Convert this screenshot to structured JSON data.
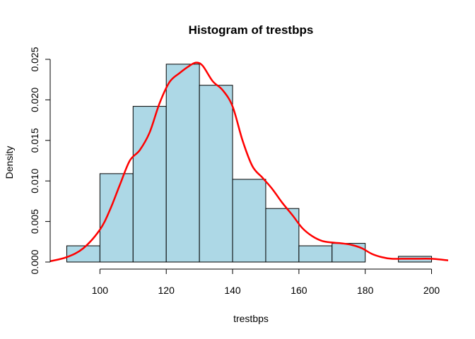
{
  "chart_data": {
    "type": "histogram",
    "title": "Histogram of trestbps",
    "xlabel": "trestbps",
    "ylabel": "Density",
    "xlim": [
      85,
      205
    ],
    "ylim": [
      0,
      0.025
    ],
    "x_ticks": [
      "100",
      "120",
      "140",
      "160",
      "180",
      "200"
    ],
    "y_ticks": [
      "0.000",
      "0.005",
      "0.010",
      "0.015",
      "0.020",
      "0.025"
    ],
    "bar_color": "#add8e6",
    "bar_edge_color": "#000000",
    "bins": [
      {
        "from": 90,
        "to": 100,
        "density": 0.002
      },
      {
        "from": 100,
        "to": 110,
        "density": 0.0109
      },
      {
        "from": 110,
        "to": 120,
        "density": 0.0192
      },
      {
        "from": 120,
        "to": 130,
        "density": 0.0244
      },
      {
        "from": 130,
        "to": 140,
        "density": 0.0218
      },
      {
        "from": 140,
        "to": 150,
        "density": 0.0102
      },
      {
        "from": 150,
        "to": 160,
        "density": 0.0066
      },
      {
        "from": 160,
        "to": 170,
        "density": 0.002
      },
      {
        "from": 170,
        "to": 180,
        "density": 0.0023
      },
      {
        "from": 180,
        "to": 190,
        "density": 0.0
      },
      {
        "from": 190,
        "to": 200,
        "density": 0.0007
      }
    ],
    "density_curve": {
      "color": "#ff0000",
      "x": [
        85,
        90,
        95,
        100,
        103,
        106,
        109,
        112,
        115,
        118,
        121,
        124,
        127,
        129,
        131,
        134,
        137,
        140,
        143,
        146,
        149,
        152,
        155,
        158,
        161,
        164,
        167,
        170,
        173,
        176,
        179,
        182,
        185,
        188,
        191,
        195,
        200,
        205
      ],
      "y": [
        0.0001,
        0.0006,
        0.0017,
        0.004,
        0.0064,
        0.0095,
        0.0125,
        0.0138,
        0.016,
        0.0196,
        0.0222,
        0.0233,
        0.0242,
        0.0246,
        0.0242,
        0.0223,
        0.0212,
        0.0192,
        0.015,
        0.0118,
        0.0104,
        0.009,
        0.0073,
        0.0058,
        0.0042,
        0.0032,
        0.0026,
        0.0024,
        0.0023,
        0.0021,
        0.0017,
        0.001,
        0.0006,
        0.0004,
        0.0004,
        0.0004,
        0.0004,
        0.0002
      ]
    }
  }
}
